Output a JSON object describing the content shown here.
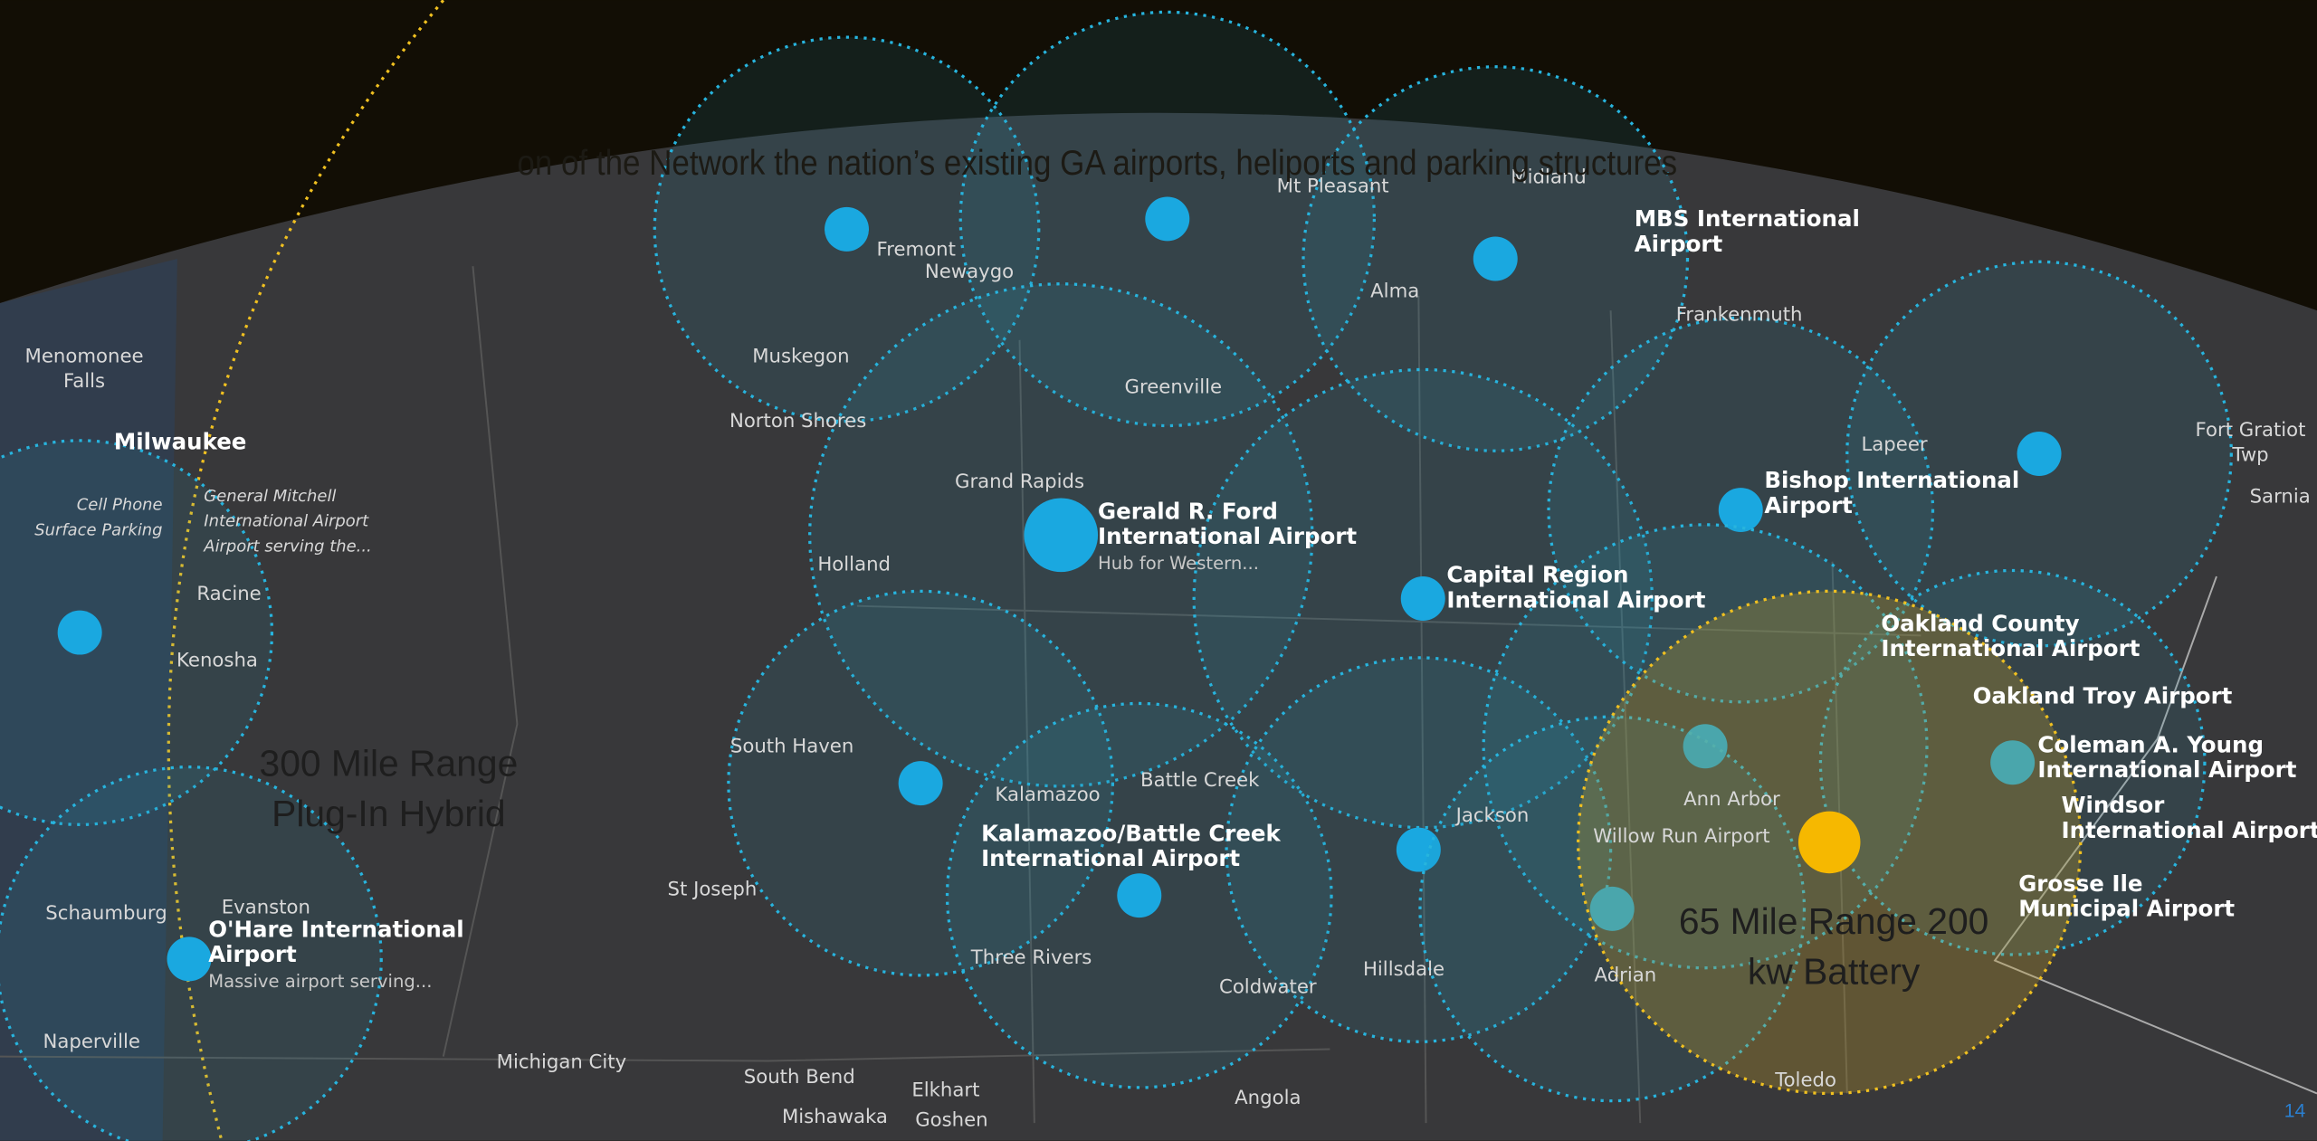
{
  "slide": {
    "title": "on of the Network the nation’s existing GA airports, heliports and parking structures",
    "page_number": "14"
  },
  "callouts": [
    [
      "300 Mile Range",
      "Plug-In Hybrid"
    ],
    [
      "65 Mile Range 200",
      "kw Battery"
    ]
  ],
  "map_labels": [
    [
      "Menomonee",
      "Falls"
    ],
    [
      "Milwaukee"
    ],
    [
      "Racine"
    ],
    [
      "Kenosha"
    ],
    [
      "Cell Phone",
      "Surface Parking"
    ],
    [
      "General Mitchell",
      "International Airport",
      "Airport serving the..."
    ],
    [
      "Schaumburg"
    ],
    [
      "Evanston"
    ],
    [
      "O'Hare International",
      "Airport",
      "Massive airport serving..."
    ],
    [
      "Naperville"
    ],
    [
      "Muskegon"
    ],
    [
      "Fremont"
    ],
    [
      "Newaygo"
    ],
    [
      "Norton Shores"
    ],
    [
      "Grand Rapids"
    ],
    [
      "Holland"
    ],
    [
      "Greenville"
    ],
    [
      "South Haven"
    ],
    [
      "Kalamazoo"
    ],
    [
      "Battle Creek"
    ],
    [
      "St Joseph"
    ],
    [
      "Three Rivers"
    ],
    [
      "Coldwater"
    ],
    [
      "Hillsdale"
    ],
    [
      "Jackson"
    ],
    [
      "Adrian"
    ],
    [
      "Ann Arbor"
    ],
    [
      "Willow Run Airport"
    ],
    [
      "Toledo"
    ],
    [
      "Alma"
    ],
    [
      "Mt Pleasant"
    ],
    [
      "Midland"
    ],
    [
      "Frankenmuth"
    ],
    [
      "Lapeer"
    ],
    [
      "Sarnia"
    ],
    [
      "Fort Gratiot",
      "Twp"
    ],
    [
      "Michigan City"
    ],
    [
      "South Bend"
    ],
    [
      "Elkhart"
    ],
    [
      "Mishawaka"
    ],
    [
      "Goshen"
    ],
    [
      "Angola"
    ],
    [
      "MBS International",
      "Airport"
    ],
    [
      "Bishop International",
      "Airport"
    ],
    [
      "Gerald R. Ford",
      "International Airport",
      "Hub for Western..."
    ],
    [
      "Capital Region",
      "International Airport"
    ],
    [
      "Oakland County",
      "International Airport"
    ],
    [
      "Oakland Troy Airport"
    ],
    [
      "Coleman A. Young",
      "International Airport"
    ],
    [
      "Windsor",
      "International Airport"
    ],
    [
      "Grosse Ile",
      "Municipal Airport"
    ],
    [
      "Kalamazoo/Battle Creek",
      "International Airport"
    ]
  ]
}
